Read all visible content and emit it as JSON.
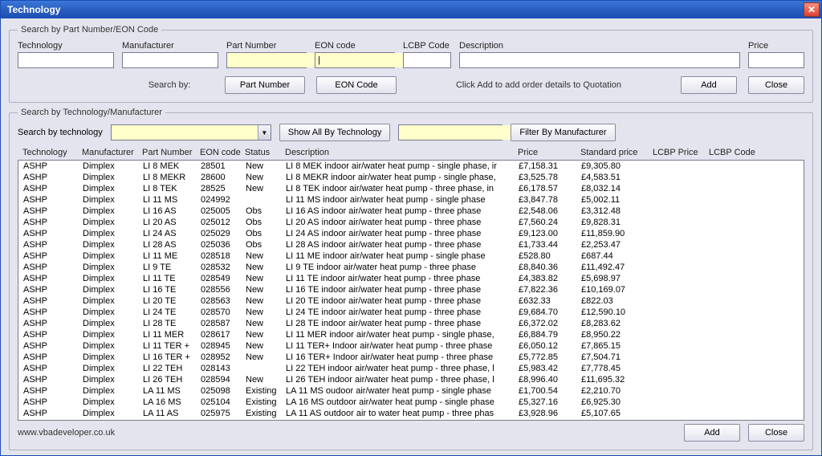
{
  "window": {
    "title": "Technology"
  },
  "colors": {
    "title_grad_top": "#3a78d8",
    "title_grad_bottom": "#1b4db3",
    "highlight_input": "#ffffcc",
    "close_btn": "#d9442d"
  },
  "search_eon": {
    "legend": "Search by Part Number/EON Code",
    "labels": {
      "technology": "Technology",
      "manufacturer": "Manufacturer",
      "part_number": "Part Number",
      "eon_code": "EON code",
      "lcbp_code": "LCBP Code",
      "description": "Description",
      "price": "Price"
    },
    "values": {
      "technology": "",
      "manufacturer": "",
      "part_number": "",
      "eon_code": "",
      "lcbp_code": "",
      "description": "",
      "price": ""
    },
    "search_by_label": "Search by:",
    "btn_part_number": "Part Number",
    "btn_eon_code": "EON Code",
    "hint": "Click Add to add order details to Quotation",
    "btn_add": "Add",
    "btn_close": "Close"
  },
  "search_tech": {
    "legend": "Search by Technology/Manufacturer",
    "label_search_by_tech": "Search by technology",
    "btn_show_all": "Show All By Technology",
    "btn_filter": "Filter By Manufacturer",
    "columns": {
      "technology": "Technology",
      "manufacturer": "Manufacturer",
      "part_number": "Part Number",
      "eon_code": "EON code",
      "status": "Status",
      "description": "Description",
      "price": "Price",
      "standard_price": "Standard price",
      "lcbp_price": "LCBP Price",
      "lcbp_code": "LCBP Code"
    },
    "rows": [
      {
        "tech": "ASHP",
        "mfr": "Dimplex",
        "part": "LI 8 MEK",
        "eon": "28501",
        "status": "New",
        "desc": "LI 8 MEK indoor air/water heat pump - single phase, ir",
        "price": "£7,158.31",
        "std": "£9,305.80"
      },
      {
        "tech": "ASHP",
        "mfr": "Dimplex",
        "part": "LI 8 MEKR",
        "eon": "28600",
        "status": "New",
        "desc": "LI 8 MEKR indoor air/water heat pump - single phase,",
        "price": "£3,525.78",
        "std": "£4,583.51"
      },
      {
        "tech": "ASHP",
        "mfr": "Dimplex",
        "part": "LI 8 TEK",
        "eon": "28525",
        "status": "New",
        "desc": "LI 8 TEK indoor air/water heat pump - three phase, in",
        "price": "£6,178.57",
        "std": "£8,032.14"
      },
      {
        "tech": "ASHP",
        "mfr": "Dimplex",
        "part": "LI 11 MS",
        "eon": "024992",
        "status": "",
        "desc": "LI 11 MS indoor air/water heat pump - single phase",
        "price": "£3,847.78",
        "std": "£5,002.11"
      },
      {
        "tech": "ASHP",
        "mfr": "Dimplex",
        "part": "LI 16 AS",
        "eon": "025005",
        "status": "Obs",
        "desc": "LI 16 AS indoor air/water heat pump - three phase",
        "price": "£2,548.06",
        "std": "£3,312.48"
      },
      {
        "tech": "ASHP",
        "mfr": "Dimplex",
        "part": "LI 20 AS",
        "eon": "025012",
        "status": "Obs",
        "desc": "LI 20 AS indoor air/water heat pump - three phase",
        "price": "£7,560.24",
        "std": "£9,828.31"
      },
      {
        "tech": "ASHP",
        "mfr": "Dimplex",
        "part": "LI 24 AS",
        "eon": "025029",
        "status": "Obs",
        "desc": "LI 24 AS indoor air/water heat pump - three phase",
        "price": "£9,123.00",
        "std": "£11,859.90"
      },
      {
        "tech": "ASHP",
        "mfr": "Dimplex",
        "part": "LI 28 AS",
        "eon": "025036",
        "status": "Obs",
        "desc": "LI 28 AS indoor air/water heat pump - three phase",
        "price": "£1,733.44",
        "std": "£2,253.47"
      },
      {
        "tech": "ASHP",
        "mfr": "Dimplex",
        "part": "LI 11 ME",
        "eon": "028518",
        "status": "New",
        "desc": "LI 11 ME indoor air/water heat pump - single phase",
        "price": "£528.80",
        "std": "£687.44"
      },
      {
        "tech": "ASHP",
        "mfr": "Dimplex",
        "part": "LI 9 TE",
        "eon": "028532",
        "status": "New",
        "desc": "LI 9 TE indoor air/water heat pump - three phase",
        "price": "£8,840.36",
        "std": "£11,492.47"
      },
      {
        "tech": "ASHP",
        "mfr": "Dimplex",
        "part": "LI 11 TE",
        "eon": "028549",
        "status": "New",
        "desc": "LI 11 TE indoor air/water heat pump - three phase",
        "price": "£4,383.82",
        "std": "£5,698.97"
      },
      {
        "tech": "ASHP",
        "mfr": "Dimplex",
        "part": "LI 16 TE",
        "eon": "028556",
        "status": "New",
        "desc": "LI 16 TE indoor air/water heat pump - three phase",
        "price": "£7,822.36",
        "std": "£10,169.07"
      },
      {
        "tech": "ASHP",
        "mfr": "Dimplex",
        "part": "LI 20 TE",
        "eon": "028563",
        "status": "New",
        "desc": "LI 20 TE indoor air/water heat pump - three phase",
        "price": "£632.33",
        "std": "£822.03"
      },
      {
        "tech": "ASHP",
        "mfr": "Dimplex",
        "part": "LI 24 TE",
        "eon": "028570",
        "status": "New",
        "desc": "LI 24 TE indoor air/water heat pump - three phase",
        "price": "£9,684.70",
        "std": "£12,590.10"
      },
      {
        "tech": "ASHP",
        "mfr": "Dimplex",
        "part": "LI 28 TE",
        "eon": "028587",
        "status": "New",
        "desc": "LI 28 TE indoor air/water heat pump - three phase",
        "price": "£6,372.02",
        "std": "£8,283.62"
      },
      {
        "tech": "ASHP",
        "mfr": "Dimplex",
        "part": "LI 11 MER",
        "eon": "028617",
        "status": "New",
        "desc": "LI 11 MER indoor air/water heat pump - single phase,",
        "price": "£6,884.79",
        "std": "£8,950.22"
      },
      {
        "tech": "ASHP",
        "mfr": "Dimplex",
        "part": "LI 11 TER +",
        "eon": "028945",
        "status": "New",
        "desc": "LI 11 TER+ Indoor air/water heat pump - three phase",
        "price": "£6,050.12",
        "std": "£7,865.15"
      },
      {
        "tech": "ASHP",
        "mfr": "Dimplex",
        "part": "LI 16 TER +",
        "eon": "028952",
        "status": "New",
        "desc": "LI 16 TER+ Indoor air/water heat pump - three phase",
        "price": "£5,772.85",
        "std": "£7,504.71"
      },
      {
        "tech": "ASHP",
        "mfr": "Dimplex",
        "part": "LI 22 TEH",
        "eon": "028143",
        "status": "",
        "desc": "LI 22 TEH indoor air/water heat pump - three phase, l",
        "price": "£5,983.42",
        "std": "£7,778.45"
      },
      {
        "tech": "ASHP",
        "mfr": "Dimplex",
        "part": "LI 26 TEH",
        "eon": "028594",
        "status": "New",
        "desc": "LI 26 TEH indoor air/water heat pump - three phase, l",
        "price": "£8,996.40",
        "std": "£11,695.32"
      },
      {
        "tech": "ASHP",
        "mfr": "Dimplex",
        "part": "LA 11 MS",
        "eon": "025098",
        "status": "Existing",
        "desc": "LA 11 MS oudoor air/water heat pump - single phase",
        "price": "£1,700.54",
        "std": "£2,210.70"
      },
      {
        "tech": "ASHP",
        "mfr": "Dimplex",
        "part": "LA 16 MS",
        "eon": "025104",
        "status": "Existing",
        "desc": "LA 16 MS outdoor air/water heat pump - single phase",
        "price": "£5,327.16",
        "std": "£6,925.30"
      },
      {
        "tech": "ASHP",
        "mfr": "Dimplex",
        "part": "LA 11 AS",
        "eon": "025975",
        "status": "Existing",
        "desc": "LA 11 AS outdoor air to water heat pump - three phas",
        "price": "£3,928.96",
        "std": "£5,107.65"
      }
    ]
  },
  "footer": {
    "link": "www.vbadeveloper.co.uk",
    "btn_add": "Add",
    "btn_close": "Close"
  }
}
